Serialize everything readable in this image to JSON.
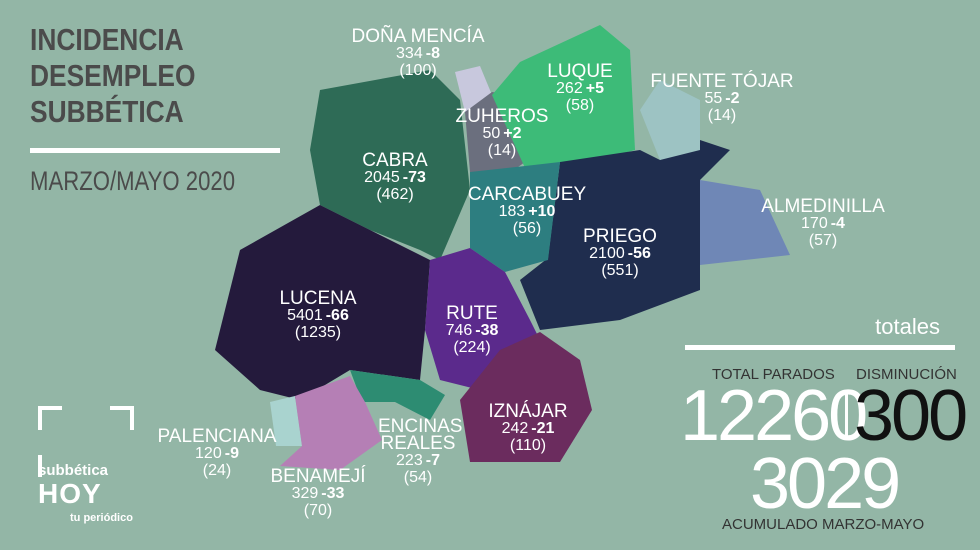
{
  "header": {
    "title_lines": [
      "INCIDENCIA",
      "DESEMPLEO",
      "SUBBÉTICA"
    ],
    "subtitle": "MARZO/MAYO 2020"
  },
  "regions": [
    {
      "name": "DOÑA MENCÍA",
      "total": 334,
      "change": "-8",
      "accumulated": "(100)"
    },
    {
      "name": "LUQUE",
      "total": 262,
      "change": "+5",
      "accumulated": "(58)"
    },
    {
      "name": "FUENTE TÓJAR",
      "total": 55,
      "change": "-2",
      "accumulated": "(14)"
    },
    {
      "name": "ZUHEROS",
      "total": 50,
      "change": "+2",
      "accumulated": "(14)"
    },
    {
      "name": "CABRA",
      "total": 2045,
      "change": "-73",
      "accumulated": "(462)"
    },
    {
      "name": "CARCABUEY",
      "total": 183,
      "change": "+10",
      "accumulated": "(56)"
    },
    {
      "name": "ALMEDINILLA",
      "total": 170,
      "change": "-4",
      "accumulated": "(57)"
    },
    {
      "name": "PRIEGO",
      "total": 2100,
      "change": "-56",
      "accumulated": "(551)"
    },
    {
      "name": "LUCENA",
      "total": 5401,
      "change": "-66",
      "accumulated": "(1235)"
    },
    {
      "name": "RUTE",
      "total": 746,
      "change": "-38",
      "accumulated": "(224)"
    },
    {
      "name": "IZNÁJAR",
      "total": 242,
      "change": "-21",
      "accumulated": "(110)"
    },
    {
      "name": "ENCINAS REALES",
      "total": 223,
      "change": "-7",
      "accumulated": "(54)"
    },
    {
      "name": "PALENCIANA",
      "total": 120,
      "change": "-9",
      "accumulated": "(24)"
    },
    {
      "name": "BENAMEJÍ",
      "total": 329,
      "change": "-33",
      "accumulated": "(70)"
    }
  ],
  "totals": {
    "heading": "totales",
    "total_label": "TOTAL PARADOS",
    "total_value": 12260,
    "decrease_label": "DISMINUCIÓN",
    "decrease_value": 300,
    "accumulated_value": 3029,
    "accumulated_label": "ACUMULADO MARZO-MAYO"
  },
  "logo": {
    "brand": "subbética",
    "name": "HOY",
    "tagline": "tu periódico"
  }
}
